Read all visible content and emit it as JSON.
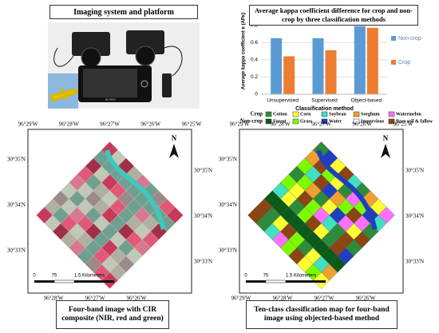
{
  "photo_panel": {
    "title": "Imaging system and platform",
    "device_label": "ALVEO"
  },
  "chart_data": {
    "type": "bar",
    "title": "Average kappa coefficient difference for crop and non-crop by three classification methods",
    "x_label": "Classification method",
    "y_label": "Average kappa coefficient κ (APκ)",
    "categories": [
      "Unsupervised",
      "Supervised",
      "Object-based"
    ],
    "series": [
      {
        "name": "Non-crop",
        "color": "#5b9bd5",
        "values": [
          0.65,
          0.65,
          0.79
        ]
      },
      {
        "name": "Crop",
        "color": "#ed7d31",
        "values": [
          0.44,
          0.51,
          0.77
        ]
      }
    ],
    "ylim": [
      0,
      1
    ],
    "yticks": [
      0,
      0.2,
      0.4,
      0.6,
      0.8,
      1
    ],
    "grid": true,
    "legend": "right"
  },
  "maps": [
    {
      "style": "cir",
      "top_labels": [
        "96°29'W",
        "96°28'W",
        "96°27'W",
        "96°26'W",
        "96°25'W"
      ],
      "left_labels": [
        "30°35'N",
        "30°34'N",
        "30°33'N"
      ],
      "right_labels": [
        "30°35'N",
        "30°34'N",
        "30°33'N"
      ],
      "bottom_labels": [
        "96°28'W",
        "96°27'W",
        "96°26'W"
      ],
      "north": "N",
      "scale_labels": [
        "0",
        "75",
        "1.5 Kilometers"
      ],
      "caption": "Four-band image with CIR composite (NIR, red and green)"
    },
    {
      "style": "class",
      "top_labels": [
        "96°29'W",
        "96°28'W",
        "96°27'W",
        "96°26'W",
        "96°25'W"
      ],
      "left_labels": [
        "30°35'N",
        "30°34'N",
        "30°33'N"
      ],
      "right_labels": [
        "30°35'N",
        "30°34'N",
        "30°33'N"
      ],
      "bottom_labels": [
        "96°29'W",
        "96°28'W",
        "96°27'W",
        "96°26'W"
      ],
      "north": "N",
      "scale_labels": [
        "0",
        "75",
        "1.5 Kilometers"
      ],
      "caption": "Ten-class classification map for four-band image using objected-based method"
    }
  ],
  "class_legend": {
    "rows": [
      {
        "label": "Crop",
        "classes": [
          {
            "name": "Cotton",
            "color": "#2e8b3a"
          },
          {
            "name": "Corn",
            "color": "#ffff33"
          },
          {
            "name": "Soybean",
            "color": "#40e0c0"
          },
          {
            "name": "Sorghum",
            "color": "#f0a030"
          },
          {
            "name": "Watermelon",
            "color": "#ff70ff"
          }
        ]
      },
      {
        "label": "Non-crop",
        "classes": [
          {
            "name": "Forest",
            "color": "#0a5a1a"
          },
          {
            "name": "Grass",
            "color": "#7cfc00"
          },
          {
            "name": "Water",
            "color": "#1f3fbf"
          },
          {
            "name": "Impervious",
            "color": "#ffffff"
          },
          {
            "name": "Bare soil & fallow",
            "color": "#8b4513"
          }
        ]
      }
    ]
  }
}
